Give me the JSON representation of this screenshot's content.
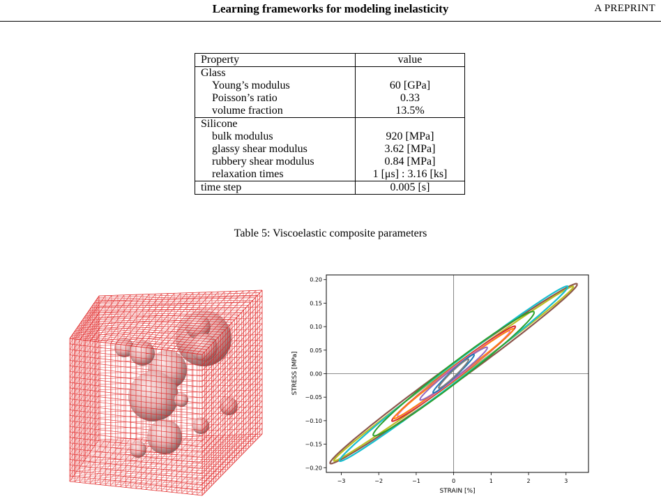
{
  "header": {
    "title": "Learning frameworks for modeling inelasticity",
    "right": "A PREPRINT"
  },
  "table": {
    "col_property": "Property",
    "col_value": "value",
    "sections": [
      {
        "name": "Glass",
        "rows": [
          {
            "label": "Young’s modulus",
            "value": "60 [GPa]"
          },
          {
            "label": "Poisson’s ratio",
            "value": "0.33"
          },
          {
            "label": "volume fraction",
            "value": "13.5%"
          }
        ]
      },
      {
        "name": "Silicone",
        "rows": [
          {
            "label": "bulk modulus",
            "value": "920 [MPa]"
          },
          {
            "label": "glassy shear modulus",
            "value": "3.62 [MPa]"
          },
          {
            "label": "rubbery shear modulus",
            "value": "0.84 [MPa]"
          },
          {
            "label": "relaxation times",
            "value": "1 [μs] : 3.16 [ks]"
          }
        ]
      }
    ],
    "time_step_label": "time step",
    "time_step_value": "0.005 [s]",
    "caption": "Table 5: Viscoelastic composite parameters"
  },
  "chart_data": {
    "type": "line",
    "xlabel": "STRAIN [%]",
    "ylabel": "STRESS [MPa]",
    "xlim": [
      -3.4,
      3.6
    ],
    "ylim": [
      -0.21,
      0.21
    ],
    "xticks": [
      "−3",
      "−2",
      "−1",
      "0",
      "1",
      "2",
      "3"
    ],
    "yticks": [
      "−0.20",
      "−0.15",
      "−0.10",
      "−0.05",
      "0.00",
      "0.05",
      "0.10",
      "0.15",
      "0.20"
    ],
    "zero_lines": true,
    "series": [
      {
        "color": "#8c564b",
        "tip_x": 3.3,
        "tip_y": 0.19,
        "rel_width": 0.04
      },
      {
        "color": "#bcbd22",
        "tip_x": 3.2,
        "tip_y": 0.185,
        "rel_width": 0.03
      },
      {
        "color": "#17becf",
        "tip_x": 3.05,
        "tip_y": 0.185,
        "rel_width": 0.038
      },
      {
        "color": "#2ca02c",
        "tip_x": 2.15,
        "tip_y": 0.13,
        "rel_width": 0.06
      },
      {
        "color": "#d62728",
        "tip_x": 1.65,
        "tip_y": 0.1,
        "rel_width": 0.05
      },
      {
        "color": "#e377c2",
        "tip_x": 1.5,
        "tip_y": 0.09,
        "rel_width": 0.05
      },
      {
        "color": "#ff7f0e",
        "tip_x": 1.6,
        "tip_y": 0.095,
        "rel_width": 0.04
      },
      {
        "color": "#9467bd",
        "tip_x": 0.9,
        "tip_y": 0.055,
        "rel_width": 0.07
      },
      {
        "color": "#1f77b4",
        "tip_x": 0.55,
        "tip_y": 0.04,
        "rel_width": 0.06
      },
      {
        "color": "#7f7f7f",
        "tip_x": 0.4,
        "tip_y": 0.03,
        "rel_width": 0.05
      }
    ]
  }
}
